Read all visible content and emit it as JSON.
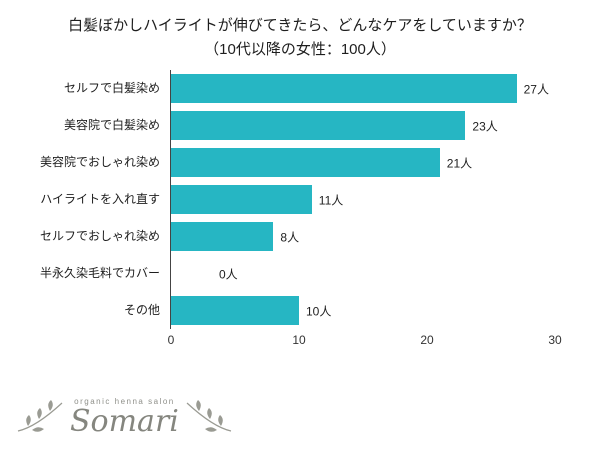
{
  "title": {
    "line1": "白髪ぼかしハイライトが伸びてきたら、どんなケアをしていますか？",
    "line2": "（10代以降の女性：100人）"
  },
  "chart_data": {
    "type": "bar",
    "orientation": "horizontal",
    "categories": [
      "セルフで白髪染め",
      "美容院で白髪染め",
      "美容院でおしゃれ染め",
      "ハイライトを入れ直す",
      "セルフでおしゃれ染め",
      "半永久染毛料でカバー",
      "その他"
    ],
    "values": [
      27,
      23,
      21,
      11,
      8,
      0,
      10
    ],
    "value_labels": [
      "27人",
      "23人",
      "21人",
      "11人",
      "8人",
      "0人",
      "10人"
    ],
    "xlim": [
      0,
      30
    ],
    "xticks": [
      0,
      10,
      20,
      30
    ],
    "bar_color": "#26b6c3",
    "legend": "none",
    "grid": "off"
  },
  "logo": {
    "tagline": "organic henna salon",
    "name": "Somari"
  }
}
